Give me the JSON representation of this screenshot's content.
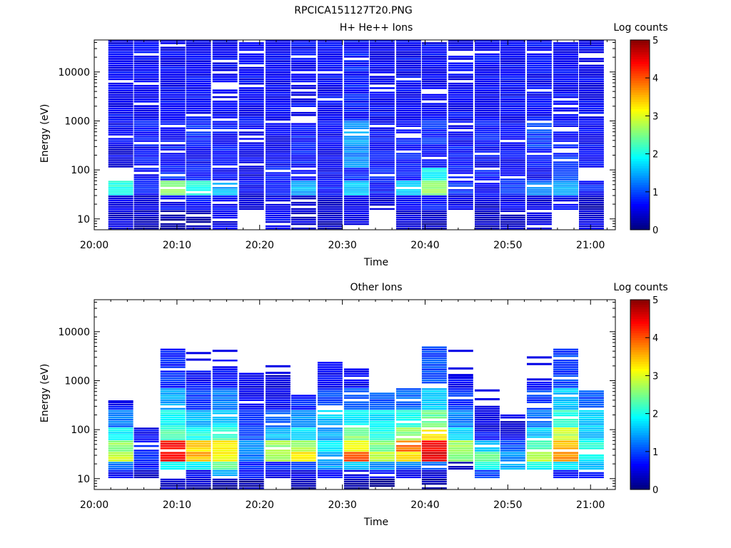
{
  "figure": {
    "filename": "RPCICA151127T20.PNG"
  },
  "chart_data": [
    {
      "type": "heatmap",
      "title": "H+ He++ Ions",
      "xlabel": "Time",
      "ylabel": "Energy (eV)",
      "xticks": [
        "20:00",
        "20:10",
        "20:20",
        "20:30",
        "20:40",
        "20:50",
        "21:00"
      ],
      "xlim_minutes": [
        0,
        63
      ],
      "yticks": [
        "10",
        "100",
        "1000",
        "10000"
      ],
      "ylim": [
        6,
        45000
      ],
      "yscale": "log",
      "colorbar": {
        "label": "Log counts",
        "range": [
          0,
          5
        ],
        "ticks": [
          "0",
          "1",
          "2",
          "3",
          "4",
          "5"
        ]
      },
      "x_bins_start_minute": [
        1.7,
        4.8,
        8.0,
        11.1,
        14.3,
        17.5,
        20.7,
        23.8,
        27.0,
        30.2,
        33.3,
        36.5,
        39.6,
        42.8,
        46.0,
        49.1,
        52.3,
        55.5,
        58.6
      ],
      "x_bin_width_minutes": 3.1,
      "energy_band_levels": [
        {
          "e_min": 6,
          "e_max": 15,
          "level": [
            0.4,
            0.3,
            0.2,
            0.3,
            0.5,
            null,
            0.6,
            0.4,
            0.3,
            0.5,
            null,
            0.4,
            0.3,
            null,
            0.3,
            0.3,
            0.4,
            null,
            0.5
          ]
        },
        {
          "e_min": 15,
          "e_max": 30,
          "level": [
            0.5,
            0.4,
            0.6,
            0.7,
            0.6,
            0.4,
            0.5,
            0.3,
            0.4,
            0.6,
            0.4,
            0.6,
            0.7,
            0.5,
            0.4,
            0.5,
            0.4,
            0.6,
            0.3
          ]
        },
        {
          "e_min": 30,
          "e_max": 60,
          "level": [
            2.0,
            0.8,
            2.6,
            2.0,
            1.5,
            0.6,
            0.7,
            1.5,
            0.7,
            1.6,
            0.7,
            1.6,
            2.6,
            0.8,
            0.6,
            0.8,
            1.2,
            1.4,
            0.7
          ]
        },
        {
          "e_min": 60,
          "e_max": 110,
          "level": [
            null,
            0.6,
            0.8,
            0.7,
            0.6,
            0.5,
            0.8,
            0.6,
            0.6,
            0.8,
            0.9,
            0.7,
            1.9,
            0.6,
            0.7,
            0.7,
            0.6,
            0.9,
            null
          ]
        },
        {
          "e_min": 110,
          "e_max": 300,
          "level": [
            0.5,
            0.6,
            0.7,
            0.6,
            0.7,
            0.6,
            0.6,
            0.7,
            0.6,
            1.3,
            0.6,
            0.7,
            0.6,
            0.7,
            0.6,
            0.6,
            0.7,
            0.8,
            0.6
          ]
        },
        {
          "e_min": 300,
          "e_max": 1000,
          "level": [
            0.6,
            0.7,
            0.6,
            0.8,
            0.7,
            0.6,
            0.6,
            0.7,
            0.6,
            1.4,
            0.6,
            0.7,
            0.8,
            0.6,
            0.7,
            0.6,
            0.9,
            0.7,
            0.6
          ]
        },
        {
          "e_min": 1000,
          "e_max": 45000,
          "level": [
            0.6,
            0.6,
            0.6,
            0.6,
            0.6,
            0.6,
            0.6,
            0.6,
            0.6,
            0.7,
            0.6,
            0.6,
            0.6,
            0.6,
            0.6,
            0.6,
            0.6,
            0.6,
            0.6
          ]
        }
      ]
    },
    {
      "type": "heatmap",
      "title": "Other Ions",
      "xlabel": "Time",
      "ylabel": "Energy (eV)",
      "xticks": [
        "20:00",
        "20:10",
        "20:20",
        "20:30",
        "20:40",
        "20:50",
        "21:00"
      ],
      "xlim_minutes": [
        0,
        63
      ],
      "yticks": [
        "10",
        "100",
        "1000",
        "10000"
      ],
      "ylim": [
        6,
        45000
      ],
      "yscale": "log",
      "colorbar": {
        "label": "Log counts",
        "range": [
          0,
          5
        ],
        "ticks": [
          "0",
          "1",
          "2",
          "3",
          "4",
          "5"
        ]
      },
      "x_bins_start_minute": [
        1.7,
        4.8,
        8.0,
        11.1,
        14.3,
        17.5,
        20.7,
        23.8,
        27.0,
        30.2,
        33.3,
        36.5,
        39.6,
        42.8,
        46.0,
        49.1,
        52.3,
        55.5,
        58.6
      ],
      "x_bin_width_minutes": 3.1,
      "column_top_energy": [
        350,
        130,
        4500,
        1500,
        2600,
        1400,
        1300,
        500,
        2300,
        1800,
        550,
        700,
        5000,
        1100,
        300,
        200,
        900,
        4500,
        600
      ],
      "energy_band_levels": [
        {
          "e_min": 6,
          "e_max": 10,
          "level": [
            null,
            null,
            0.3,
            0.3,
            0.2,
            0.2,
            null,
            0.2,
            null,
            0.2,
            0.2,
            null,
            0.2,
            null,
            null,
            null,
            null,
            null,
            null
          ]
        },
        {
          "e_min": 10,
          "e_max": 15,
          "level": [
            0.6,
            0.3,
            null,
            0.6,
            1.4,
            0.7,
            0.6,
            0.5,
            0.7,
            0.6,
            0.6,
            0.6,
            0.4,
            null,
            1.0,
            null,
            null,
            0.7,
            0.8
          ]
        },
        {
          "e_min": 15,
          "e_max": 22,
          "level": [
            1.2,
            0.7,
            1.8,
            1.9,
            2.3,
            0.8,
            0.8,
            1.0,
            1.4,
            1.6,
            1.4,
            1.2,
            1.2,
            0.3,
            2.0,
            1.4,
            1.9,
            1.8,
            1.6
          ]
        },
        {
          "e_min": 22,
          "e_max": 35,
          "level": [
            2.8,
            0.9,
            4.4,
            3.5,
            3.2,
            1.2,
            2.8,
            3.3,
            1.5,
            3.9,
            2.8,
            3.2,
            4.5,
            2.6,
            2.3,
            1.3,
            2.8,
            3.6,
            1.9
          ]
        },
        {
          "e_min": 35,
          "e_max": 60,
          "level": [
            2.6,
            0.8,
            4.3,
            3.3,
            3.1,
            1.4,
            2.6,
            2.7,
            1.7,
            3.2,
            2.5,
            3.8,
            4.4,
            2.7,
            1.6,
            1.0,
            2.2,
            3.4,
            2.0
          ]
        },
        {
          "e_min": 60,
          "e_max": 110,
          "level": [
            1.8,
            0.6,
            2.2,
            2.0,
            2.2,
            1.0,
            1.5,
            1.8,
            1.4,
            2.5,
            2.0,
            2.6,
            3.3,
            1.7,
            0.6,
            0.5,
            1.6,
            2.8,
            1.6
          ]
        },
        {
          "e_min": 110,
          "e_max": 250,
          "level": [
            1.2,
            null,
            1.9,
            1.5,
            1.7,
            0.8,
            1.0,
            1.3,
            1.6,
            1.8,
            1.8,
            2.0,
            2.4,
            1.3,
            0.5,
            0.4,
            1.2,
            2.1,
            1.6
          ]
        },
        {
          "e_min": 250,
          "e_max": 700,
          "level": [
            0.6,
            null,
            1.4,
            0.9,
            1.2,
            0.6,
            0.6,
            0.8,
            0.9,
            1.0,
            1.0,
            1.1,
            1.6,
            0.8,
            0.4,
            null,
            0.9,
            1.6,
            1.0
          ]
        },
        {
          "e_min": 700,
          "e_max": 5000,
          "level": [
            null,
            null,
            0.8,
            0.6,
            0.7,
            0.5,
            0.4,
            null,
            0.6,
            0.5,
            null,
            null,
            1.0,
            0.6,
            null,
            null,
            0.6,
            0.9,
            null
          ]
        }
      ]
    }
  ]
}
